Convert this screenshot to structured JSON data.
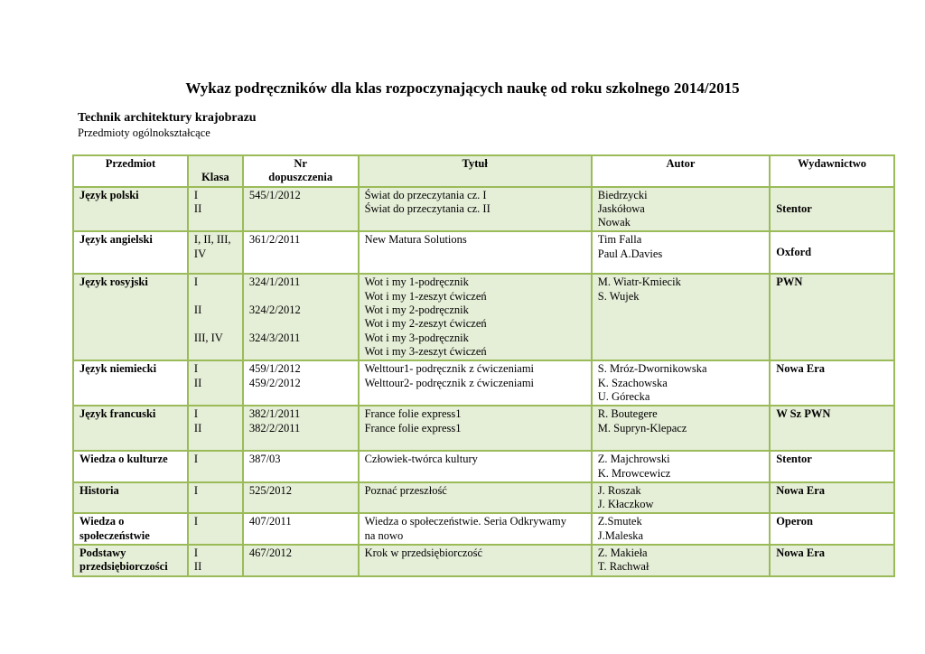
{
  "title": "Wykaz podręczników dla klas rozpoczynających naukę  od roku szkolnego 2014/2015",
  "section": "Technik architektury krajobrazu",
  "subsection": "Przedmioty ogólnokształcące",
  "colors": {
    "border": "#9bbb59",
    "shade": "#e5eed7"
  },
  "headers": {
    "subject": "Przedmiot",
    "class": "Klasa",
    "nr_line1": "Nr",
    "nr_line2": "dopuszczenia",
    "title": "Tytuł",
    "author": "Autor",
    "publisher": "Wydawnictwo"
  },
  "rows": [
    {
      "subject": [
        "Język polski"
      ],
      "class": [
        "I",
        "II"
      ],
      "nr": [
        "545/1/2012"
      ],
      "titles": [
        "Świat do przeczytania cz. I",
        "Świat do przeczytania cz. II"
      ],
      "authors": [
        "Biedrzycki",
        "Jaskółowa",
        "Nowak"
      ],
      "publisher": "Stentor"
    },
    {
      "subject": [
        "Język angielski"
      ],
      "class": [
        "I, II, III,",
        "IV"
      ],
      "nr": [
        "361/2/2011"
      ],
      "titles": [
        "New Matura Solutions"
      ],
      "authors": [
        "Tim Falla",
        "Paul A.Davies"
      ],
      "publisher": "Oxford"
    },
    {
      "subject": [
        "Język rosyjski"
      ],
      "class": [
        "I",
        "",
        "II",
        "",
        "III, IV"
      ],
      "nr": [
        "324/1/2011",
        "",
        "324/2/2012",
        "",
        "324/3/2011"
      ],
      "titles": [
        "Wot i my 1-podręcznik",
        "Wot i my 1-zeszyt ćwiczeń",
        "Wot i my 2-podręcznik",
        "Wot i my 2-zeszyt ćwiczeń",
        "Wot i my 3-podręcznik",
        "Wot i my 3-zeszyt ćwiczeń"
      ],
      "authors": [
        "M. Wiatr-Kmiecik",
        "S.  Wujek"
      ],
      "publisher": "PWN"
    },
    {
      "subject": [
        "Język niemiecki"
      ],
      "class": [
        "I",
        "II"
      ],
      "nr": [
        "459/1/2012",
        "459/2/2012"
      ],
      "titles": [
        "Welttour1- podręcznik z ćwiczeniami",
        "Welttour2- podręcznik z ćwiczeniami"
      ],
      "authors": [
        "S. Mróz-Dwornikowska",
        "K. Szachowska",
        "U. Górecka"
      ],
      "publisher": "Nowa Era"
    },
    {
      "subject": [
        "Język francuski"
      ],
      "class": [
        "I",
        "II"
      ],
      "nr": [
        "382/1/2011",
        "382/2/2011"
      ],
      "titles": [
        "France folie express1",
        "France folie express1"
      ],
      "authors": [
        "R. Boutegere",
        "M. Supryn-Klepacz"
      ],
      "publisher": "W Sz PWN"
    },
    {
      "subject": [
        "Wiedza o kulturze"
      ],
      "class": [
        "I"
      ],
      "nr": [
        "387/03"
      ],
      "titles": [
        "Człowiek-twórca kultury"
      ],
      "authors": [
        "Z. Majchrowski",
        "K. Mrowcewicz"
      ],
      "publisher": "Stentor"
    },
    {
      "subject": [
        "Historia"
      ],
      "class": [
        "I"
      ],
      "nr": [
        "525/2012"
      ],
      "titles": [
        "Poznać przeszłość"
      ],
      "authors": [
        "J. Roszak",
        "J. Kłaczkow"
      ],
      "publisher": "Nowa Era"
    },
    {
      "subject": [
        "Wiedza o",
        "społeczeństwie"
      ],
      "class": [
        "I"
      ],
      "nr": [
        "407/2011"
      ],
      "titles": [
        "Wiedza o społeczeństwie. Seria Odkrywamy",
        "na nowo"
      ],
      "authors": [
        "Z.Smutek",
        "J.Maleska"
      ],
      "publisher": "Operon"
    },
    {
      "subject": [
        "Podstawy",
        "przedsiębiorczości"
      ],
      "class": [
        "I",
        "II"
      ],
      "nr": [
        "467/2012"
      ],
      "titles": [
        "Krok w przedsiębiorczość"
      ],
      "authors": [
        "Z. Makieła",
        "T. Rachwał"
      ],
      "publisher": "Nowa Era"
    }
  ]
}
